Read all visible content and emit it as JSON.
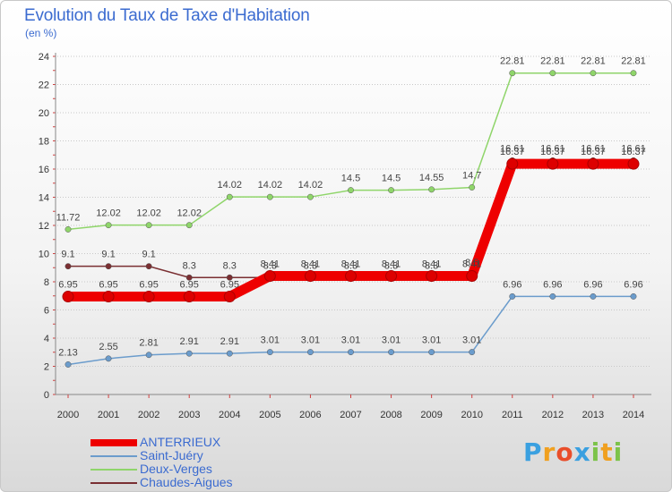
{
  "title": "Evolution du Taux de Taxe d'Habitation",
  "unit_label": "(en %)",
  "logo": "Proxiti",
  "chart_data": {
    "type": "line",
    "title": "Evolution du Taux de Taxe d'Habitation",
    "ylabel": "(en %)",
    "xlabel": "",
    "x": [
      "2000",
      "2001",
      "2002",
      "2003",
      "2004",
      "2005",
      "2006",
      "2007",
      "2008",
      "2009",
      "2010",
      "2011",
      "2012",
      "2013",
      "2014"
    ],
    "ylim": [
      0,
      24
    ],
    "yticks": [
      0,
      2,
      4,
      6,
      8,
      10,
      12,
      14,
      16,
      18,
      20,
      22,
      24
    ],
    "grid": "horizontal dotted",
    "legend": "bottom-left",
    "series": [
      {
        "name": "ANTERRIEUX",
        "color": "#ee0000",
        "values": [
          6.95,
          6.95,
          6.95,
          6.95,
          6.95,
          8.41,
          8.41,
          8.41,
          8.41,
          8.41,
          8.41,
          16.37,
          16.37,
          16.37,
          16.37
        ],
        "labels": [
          "6.95",
          "6.95",
          "6.95",
          "6.95",
          "6.95",
          "8.41",
          "8.41",
          "8.41",
          "8.41",
          "8.41",
          "8.41",
          "16.37",
          "16.37",
          "16.37",
          "16.37"
        ]
      },
      {
        "name": "Saint-Juéry",
        "color": "#6b9ccc",
        "values": [
          2.13,
          2.55,
          2.81,
          2.91,
          2.91,
          3.01,
          3.01,
          3.01,
          3.01,
          3.01,
          3.01,
          6.96,
          6.96,
          6.96,
          6.96
        ],
        "labels": [
          "2.13",
          "2.55",
          "2.81",
          "2.91",
          "2.91",
          "3.01",
          "3.01",
          "3.01",
          "3.01",
          "3.01",
          "3.01",
          "6.96",
          "6.96",
          "6.96",
          "6.96"
        ]
      },
      {
        "name": "Deux-Verges",
        "color": "#8fd56a",
        "values": [
          11.72,
          12.02,
          12.02,
          12.02,
          14.02,
          14.02,
          14.02,
          14.5,
          14.5,
          14.55,
          14.7,
          22.81,
          22.81,
          22.81,
          22.81
        ],
        "labels": [
          "11.72",
          "12.02",
          "12.02",
          "12.02",
          "14.02",
          "14.02",
          "14.02",
          "14.5",
          "14.5",
          "14.55",
          "14.7",
          "22.81",
          "22.81",
          "22.81",
          "22.81"
        ]
      },
      {
        "name": "Chaudes-Aigues",
        "color": "#7a2f32",
        "values": [
          9.1,
          9.1,
          9.1,
          8.3,
          8.3,
          8.3,
          8.3,
          8.3,
          8.3,
          8.3,
          8.5,
          16.61,
          16.61,
          16.61,
          16.61
        ],
        "labels": [
          "9.1",
          "9.1",
          "9.1",
          "8.3",
          "8.3",
          "8.3",
          "8.3",
          "8.3",
          "8.3",
          "8.3",
          "8.5",
          "16.61",
          "16.61",
          "16.61",
          "16.61"
        ]
      }
    ]
  }
}
